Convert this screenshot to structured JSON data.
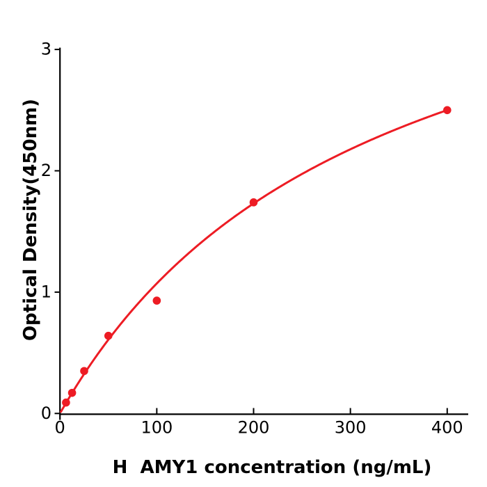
{
  "figure": {
    "background": "#ffffff",
    "axis_color": "#000000",
    "accent_red": "#ed1c24"
  },
  "chart_data": {
    "type": "scatter",
    "title": "",
    "xlabel": "H  AMY1 concentration (ng/mL)",
    "ylabel": "Optical Density(450nm)",
    "x_ticks": [
      "0",
      "100",
      "200",
      "300",
      "400"
    ],
    "y_ticks": [
      "0",
      "1",
      "2",
      "3"
    ],
    "xlim": [
      0,
      422
    ],
    "ylim": [
      0,
      3
    ],
    "grid": false,
    "legend_position": "none",
    "series": [
      {
        "name": "standard-points",
        "type": "scatter",
        "color": "#ed1c24",
        "marker_radius": 5.8,
        "x": [
          6.25,
          12.5,
          25,
          50,
          100,
          200,
          400
        ],
        "y": [
          0.09,
          0.17,
          0.35,
          0.64,
          0.93,
          1.74,
          2.5
        ]
      },
      {
        "name": "fit-curve",
        "type": "line",
        "color": "#ed1c24",
        "line_width": 3,
        "fit": {
          "model": "michaelis_menten",
          "formula": "y = Vmax*x/(K+x)",
          "vmax": 4.5,
          "k": 320,
          "x_min": 1,
          "x_max": 400
        }
      }
    ]
  }
}
